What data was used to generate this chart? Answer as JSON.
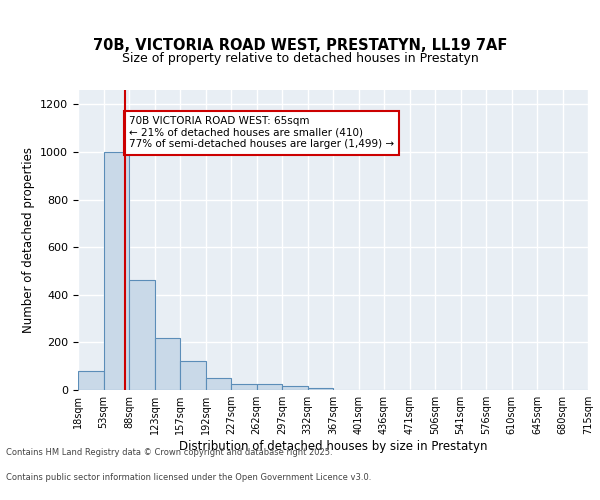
{
  "title_line1": "70B, VICTORIA ROAD WEST, PRESTATYN, LL19 7AF",
  "title_line2": "Size of property relative to detached houses in Prestatyn",
  "xlabel": "Distribution of detached houses by size in Prestatyn",
  "ylabel": "Number of detached properties",
  "bin_labels": [
    "18sqm",
    "53sqm",
    "88sqm",
    "123sqm",
    "157sqm",
    "192sqm",
    "227sqm",
    "262sqm",
    "297sqm",
    "332sqm",
    "367sqm",
    "401sqm",
    "436sqm",
    "471sqm",
    "506sqm",
    "541sqm",
    "576sqm",
    "610sqm",
    "645sqm",
    "680sqm",
    "715sqm"
  ],
  "bar_heights": [
    80,
    1000,
    460,
    220,
    120,
    50,
    25,
    25,
    15,
    10,
    0,
    0,
    0,
    0,
    0,
    0,
    0,
    0,
    0,
    0
  ],
  "bar_color": "#c9d9e8",
  "bar_edge_color": "#5b8db8",
  "red_line_x": 1.35,
  "ylim": [
    0,
    1260
  ],
  "yticks": [
    0,
    200,
    400,
    600,
    800,
    1000,
    1200
  ],
  "annotation_text": "70B VICTORIA ROAD WEST: 65sqm\n← 21% of detached houses are smaller (410)\n77% of semi-detached houses are larger (1,499) →",
  "annotation_box_color": "#ffffff",
  "annotation_box_edge_color": "#cc0000",
  "footer_line1": "Contains HM Land Registry data © Crown copyright and database right 2025.",
  "footer_line2": "Contains public sector information licensed under the Open Government Licence v3.0.",
  "background_color": "#e8eef4",
  "grid_color": "#ffffff",
  "fig_background": "#ffffff"
}
